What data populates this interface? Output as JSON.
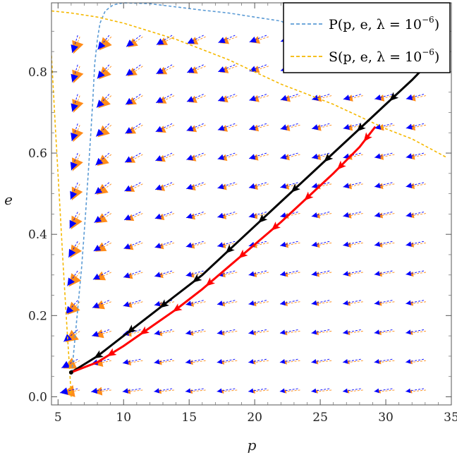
{
  "chart_data": {
    "type": "line",
    "xlabel": "p",
    "ylabel": "e",
    "xlim": [
      4.5,
      35
    ],
    "ylim": [
      -0.02,
      0.97
    ],
    "xticks": [
      5,
      10,
      15,
      20,
      25,
      30,
      35
    ],
    "yticks": [
      0.0,
      0.2,
      0.4,
      0.6,
      0.8
    ],
    "ytick_labels": [
      "0.0",
      "0.2",
      "0.4",
      "0.6",
      "0.8"
    ],
    "grid": false,
    "legend_position": "top-right",
    "series": [
      {
        "name": "P(p, e, λ = 10⁻⁶)",
        "label_main": "P(p, e, λ = 10",
        "label_exp": "−6",
        "label_close": ")",
        "color": "#5b9bd5",
        "dashed": true,
        "x": [
          6.05,
          6.4,
          6.8,
          7.1,
          7.3,
          7.5,
          7.65,
          7.8,
          8.0,
          8.2,
          8.6,
          9.2,
          10.0,
          12.0,
          14.0,
          16.0,
          18.0,
          20.0,
          22.0,
          23.0
        ],
        "y": [
          0.06,
          0.18,
          0.32,
          0.45,
          0.55,
          0.65,
          0.73,
          0.82,
          0.88,
          0.92,
          0.95,
          0.965,
          0.97,
          0.968,
          0.96,
          0.952,
          0.945,
          0.935,
          0.925,
          0.91
        ]
      },
      {
        "name": "S(p, e, λ = 10⁻⁶)",
        "label_main": "S(p, e, λ = 10",
        "label_exp": "−6",
        "label_close": ")",
        "color": "#f5b800",
        "dashed": true,
        "x": [
          4.5,
          6.0,
          8.0,
          10.0,
          12.0,
          14.0,
          16.0,
          18.0,
          20.0,
          22.0,
          24.0,
          26.0,
          28.0,
          30.0,
          32.0,
          34.6
        ],
        "y": [
          0.95,
          0.945,
          0.935,
          0.92,
          0.9,
          0.88,
          0.855,
          0.83,
          0.8,
          0.77,
          0.745,
          0.72,
          0.69,
          0.66,
          0.635,
          0.59
        ]
      }
    ],
    "separatrix_left": {
      "color": "#f5b800",
      "x": [
        4.5,
        4.8,
        5.1,
        5.4,
        5.7,
        5.9,
        6.0
      ],
      "y": [
        0.84,
        0.66,
        0.49,
        0.32,
        0.16,
        0.06,
        0.0
      ]
    },
    "trajectories": [
      {
        "color": "#000000",
        "x": [
          6.0,
          8.0,
          10.0,
          12.0,
          14.0,
          16.0,
          18.0,
          20.0,
          22.0,
          24.0,
          26.0,
          28.0,
          30.0,
          32.0,
          33.5
        ],
        "y": [
          0.06,
          0.1,
          0.15,
          0.2,
          0.25,
          0.3,
          0.36,
          0.42,
          0.48,
          0.54,
          0.6,
          0.66,
          0.72,
          0.78,
          0.83
        ],
        "arrow_x": [
          8.0,
          10.5,
          13.0,
          15.5,
          18.0,
          20.5,
          23.0,
          25.5,
          28.0,
          30.5,
          33.0
        ]
      },
      {
        "color": "#ff0000",
        "x": [
          6.0,
          8.0,
          10.0,
          12.0,
          14.0,
          16.0,
          18.0,
          20.0,
          22.0,
          24.0,
          26.0,
          28.0,
          29.2
        ],
        "y": [
          0.06,
          0.085,
          0.125,
          0.17,
          0.215,
          0.265,
          0.32,
          0.375,
          0.43,
          0.49,
          0.55,
          0.615,
          0.665
        ],
        "arrow_x": [
          9.0,
          11.5,
          14.0,
          16.5,
          19.0,
          21.5,
          24.0,
          26.5,
          28.5
        ]
      }
    ],
    "vector_field": {
      "p_min": 6.5,
      "p_max": 34,
      "p_step": 2.4,
      "e_min": 0.02,
      "e_max": 0.95,
      "e_step": 0.0725,
      "primary_color": "#0000ff",
      "secondary_color": "#ff8c1a"
    }
  }
}
